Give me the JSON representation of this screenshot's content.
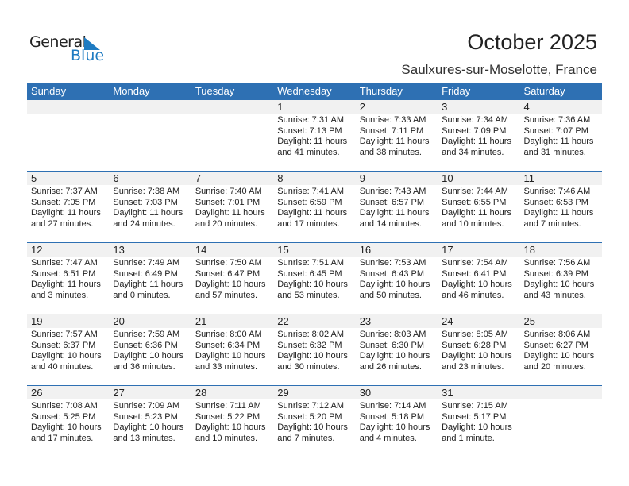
{
  "logo": {
    "line1": "General",
    "line2": "Blue"
  },
  "title": "October 2025",
  "location": "Saulxures-sur-Moselotte, France",
  "colors": {
    "header": "#2e70b3",
    "band": "#f1f1f1",
    "logo_blue": "#1e7bc2"
  },
  "weekdays": [
    "Sunday",
    "Monday",
    "Tuesday",
    "Wednesday",
    "Thursday",
    "Friday",
    "Saturday"
  ],
  "weeks": [
    [
      null,
      null,
      null,
      {
        "day": "1",
        "sunrise": "Sunrise: 7:31 AM",
        "sunset": "Sunset: 7:13 PM",
        "daylight1": "Daylight: 11 hours",
        "daylight2": "and 41 minutes."
      },
      {
        "day": "2",
        "sunrise": "Sunrise: 7:33 AM",
        "sunset": "Sunset: 7:11 PM",
        "daylight1": "Daylight: 11 hours",
        "daylight2": "and 38 minutes."
      },
      {
        "day": "3",
        "sunrise": "Sunrise: 7:34 AM",
        "sunset": "Sunset: 7:09 PM",
        "daylight1": "Daylight: 11 hours",
        "daylight2": "and 34 minutes."
      },
      {
        "day": "4",
        "sunrise": "Sunrise: 7:36 AM",
        "sunset": "Sunset: 7:07 PM",
        "daylight1": "Daylight: 11 hours",
        "daylight2": "and 31 minutes."
      }
    ],
    [
      {
        "day": "5",
        "sunrise": "Sunrise: 7:37 AM",
        "sunset": "Sunset: 7:05 PM",
        "daylight1": "Daylight: 11 hours",
        "daylight2": "and 27 minutes."
      },
      {
        "day": "6",
        "sunrise": "Sunrise: 7:38 AM",
        "sunset": "Sunset: 7:03 PM",
        "daylight1": "Daylight: 11 hours",
        "daylight2": "and 24 minutes."
      },
      {
        "day": "7",
        "sunrise": "Sunrise: 7:40 AM",
        "sunset": "Sunset: 7:01 PM",
        "daylight1": "Daylight: 11 hours",
        "daylight2": "and 20 minutes."
      },
      {
        "day": "8",
        "sunrise": "Sunrise: 7:41 AM",
        "sunset": "Sunset: 6:59 PM",
        "daylight1": "Daylight: 11 hours",
        "daylight2": "and 17 minutes."
      },
      {
        "day": "9",
        "sunrise": "Sunrise: 7:43 AM",
        "sunset": "Sunset: 6:57 PM",
        "daylight1": "Daylight: 11 hours",
        "daylight2": "and 14 minutes."
      },
      {
        "day": "10",
        "sunrise": "Sunrise: 7:44 AM",
        "sunset": "Sunset: 6:55 PM",
        "daylight1": "Daylight: 11 hours",
        "daylight2": "and 10 minutes."
      },
      {
        "day": "11",
        "sunrise": "Sunrise: 7:46 AM",
        "sunset": "Sunset: 6:53 PM",
        "daylight1": "Daylight: 11 hours",
        "daylight2": "and 7 minutes."
      }
    ],
    [
      {
        "day": "12",
        "sunrise": "Sunrise: 7:47 AM",
        "sunset": "Sunset: 6:51 PM",
        "daylight1": "Daylight: 11 hours",
        "daylight2": "and 3 minutes."
      },
      {
        "day": "13",
        "sunrise": "Sunrise: 7:49 AM",
        "sunset": "Sunset: 6:49 PM",
        "daylight1": "Daylight: 11 hours",
        "daylight2": "and 0 minutes."
      },
      {
        "day": "14",
        "sunrise": "Sunrise: 7:50 AM",
        "sunset": "Sunset: 6:47 PM",
        "daylight1": "Daylight: 10 hours",
        "daylight2": "and 57 minutes."
      },
      {
        "day": "15",
        "sunrise": "Sunrise: 7:51 AM",
        "sunset": "Sunset: 6:45 PM",
        "daylight1": "Daylight: 10 hours",
        "daylight2": "and 53 minutes."
      },
      {
        "day": "16",
        "sunrise": "Sunrise: 7:53 AM",
        "sunset": "Sunset: 6:43 PM",
        "daylight1": "Daylight: 10 hours",
        "daylight2": "and 50 minutes."
      },
      {
        "day": "17",
        "sunrise": "Sunrise: 7:54 AM",
        "sunset": "Sunset: 6:41 PM",
        "daylight1": "Daylight: 10 hours",
        "daylight2": "and 46 minutes."
      },
      {
        "day": "18",
        "sunrise": "Sunrise: 7:56 AM",
        "sunset": "Sunset: 6:39 PM",
        "daylight1": "Daylight: 10 hours",
        "daylight2": "and 43 minutes."
      }
    ],
    [
      {
        "day": "19",
        "sunrise": "Sunrise: 7:57 AM",
        "sunset": "Sunset: 6:37 PM",
        "daylight1": "Daylight: 10 hours",
        "daylight2": "and 40 minutes."
      },
      {
        "day": "20",
        "sunrise": "Sunrise: 7:59 AM",
        "sunset": "Sunset: 6:36 PM",
        "daylight1": "Daylight: 10 hours",
        "daylight2": "and 36 minutes."
      },
      {
        "day": "21",
        "sunrise": "Sunrise: 8:00 AM",
        "sunset": "Sunset: 6:34 PM",
        "daylight1": "Daylight: 10 hours",
        "daylight2": "and 33 minutes."
      },
      {
        "day": "22",
        "sunrise": "Sunrise: 8:02 AM",
        "sunset": "Sunset: 6:32 PM",
        "daylight1": "Daylight: 10 hours",
        "daylight2": "and 30 minutes."
      },
      {
        "day": "23",
        "sunrise": "Sunrise: 8:03 AM",
        "sunset": "Sunset: 6:30 PM",
        "daylight1": "Daylight: 10 hours",
        "daylight2": "and 26 minutes."
      },
      {
        "day": "24",
        "sunrise": "Sunrise: 8:05 AM",
        "sunset": "Sunset: 6:28 PM",
        "daylight1": "Daylight: 10 hours",
        "daylight2": "and 23 minutes."
      },
      {
        "day": "25",
        "sunrise": "Sunrise: 8:06 AM",
        "sunset": "Sunset: 6:27 PM",
        "daylight1": "Daylight: 10 hours",
        "daylight2": "and 20 minutes."
      }
    ],
    [
      {
        "day": "26",
        "sunrise": "Sunrise: 7:08 AM",
        "sunset": "Sunset: 5:25 PM",
        "daylight1": "Daylight: 10 hours",
        "daylight2": "and 17 minutes."
      },
      {
        "day": "27",
        "sunrise": "Sunrise: 7:09 AM",
        "sunset": "Sunset: 5:23 PM",
        "daylight1": "Daylight: 10 hours",
        "daylight2": "and 13 minutes."
      },
      {
        "day": "28",
        "sunrise": "Sunrise: 7:11 AM",
        "sunset": "Sunset: 5:22 PM",
        "daylight1": "Daylight: 10 hours",
        "daylight2": "and 10 minutes."
      },
      {
        "day": "29",
        "sunrise": "Sunrise: 7:12 AM",
        "sunset": "Sunset: 5:20 PM",
        "daylight1": "Daylight: 10 hours",
        "daylight2": "and 7 minutes."
      },
      {
        "day": "30",
        "sunrise": "Sunrise: 7:14 AM",
        "sunset": "Sunset: 5:18 PM",
        "daylight1": "Daylight: 10 hours",
        "daylight2": "and 4 minutes."
      },
      {
        "day": "31",
        "sunrise": "Sunrise: 7:15 AM",
        "sunset": "Sunset: 5:17 PM",
        "daylight1": "Daylight: 10 hours",
        "daylight2": "and 1 minute."
      },
      null
    ]
  ]
}
